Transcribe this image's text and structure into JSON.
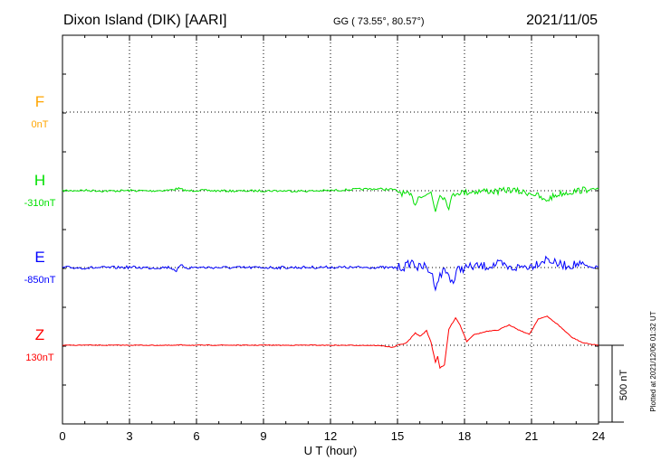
{
  "header": {
    "station": "Dixon Island (DIK)  [AARI]",
    "coords": "GG ( 73.55°,  80.57°)",
    "date": "2021/11/05"
  },
  "side_note": "Plotted at 2021/12/06 01:32 UT",
  "chart_data": {
    "type": "line",
    "xlabel": "U T (hour)",
    "xlim": [
      0,
      24
    ],
    "xticks": [
      0,
      3,
      6,
      9,
      12,
      15,
      18,
      21,
      24
    ],
    "scale_bar": {
      "label": "500 nT",
      "value_nT": 500
    },
    "colors": {
      "F": "#ffa500",
      "H": "#00e000",
      "E": "#0000ff",
      "Z": "#ff0000"
    },
    "series": [
      {
        "name": "F",
        "offset_label": "0nT",
        "baseline_nT": 0,
        "points": []
      },
      {
        "name": "H",
        "offset_label": "-310nT",
        "baseline_nT": -310,
        "points": [
          [
            0,
            -310
          ],
          [
            1,
            -308
          ],
          [
            2,
            -312
          ],
          [
            3,
            -309
          ],
          [
            4,
            -311
          ],
          [
            4.8,
            -306
          ],
          [
            5.2,
            -296
          ],
          [
            5.6,
            -312
          ],
          [
            6,
            -307
          ],
          [
            7,
            -311
          ],
          [
            8,
            -312
          ],
          [
            9,
            -310
          ],
          [
            10,
            -311
          ],
          [
            11,
            -312
          ],
          [
            12,
            -309
          ],
          [
            13,
            -302
          ],
          [
            14,
            -298
          ],
          [
            14.8,
            -302
          ],
          [
            15.2,
            -325
          ],
          [
            15.6,
            -345
          ],
          [
            15.8,
            -392
          ],
          [
            16.0,
            -335
          ],
          [
            16.3,
            -342
          ],
          [
            16.5,
            -318
          ],
          [
            16.7,
            -440
          ],
          [
            16.9,
            -325
          ],
          [
            17.1,
            -358
          ],
          [
            17.3,
            -412
          ],
          [
            17.5,
            -335
          ],
          [
            17.7,
            -318
          ],
          [
            18.0,
            -322
          ],
          [
            18.3,
            -315
          ],
          [
            19,
            -311
          ],
          [
            19.5,
            -316
          ],
          [
            20,
            -303
          ],
          [
            20.5,
            -318
          ],
          [
            21,
            -325
          ],
          [
            21.3,
            -345
          ],
          [
            21.6,
            -378
          ],
          [
            21.9,
            -352
          ],
          [
            22.3,
            -328
          ],
          [
            22.8,
            -317
          ],
          [
            23.3,
            -305
          ],
          [
            23.7,
            -302
          ],
          [
            24,
            -298
          ]
        ]
      },
      {
        "name": "E",
        "offset_label": "-850nT",
        "baseline_nT": -850,
        "points": [
          [
            0,
            -850
          ],
          [
            1,
            -852
          ],
          [
            2,
            -851
          ],
          [
            3,
            -848
          ],
          [
            4,
            -852
          ],
          [
            4.8,
            -848
          ],
          [
            5.1,
            -870
          ],
          [
            5.3,
            -838
          ],
          [
            5.6,
            -852
          ],
          [
            6,
            -849
          ],
          [
            7,
            -850
          ],
          [
            8,
            -851
          ],
          [
            9,
            -850
          ],
          [
            10,
            -850
          ],
          [
            11,
            -849
          ],
          [
            12,
            -848
          ],
          [
            13,
            -850
          ],
          [
            14,
            -848
          ],
          [
            14.7,
            -852
          ],
          [
            15.3,
            -846
          ],
          [
            15.7,
            -810
          ],
          [
            15.9,
            -852
          ],
          [
            16.2,
            -842
          ],
          [
            16.5,
            -880
          ],
          [
            16.7,
            -968
          ],
          [
            16.9,
            -905
          ],
          [
            17.1,
            -862
          ],
          [
            17.3,
            -900
          ],
          [
            17.5,
            -950
          ],
          [
            17.7,
            -862
          ],
          [
            18,
            -852
          ],
          [
            18.5,
            -843
          ],
          [
            19,
            -842
          ],
          [
            19.6,
            -826
          ],
          [
            20,
            -856
          ],
          [
            20.5,
            -846
          ],
          [
            21,
            -838
          ],
          [
            21.4,
            -812
          ],
          [
            21.7,
            -792
          ],
          [
            22.1,
            -826
          ],
          [
            22.6,
            -838
          ],
          [
            23.1,
            -828
          ],
          [
            23.6,
            -852
          ],
          [
            24,
            -845
          ]
        ]
      },
      {
        "name": "Z",
        "offset_label": "130nT",
        "baseline_nT": 130,
        "points": [
          [
            0,
            130
          ],
          [
            1,
            131
          ],
          [
            2,
            130
          ],
          [
            3,
            131
          ],
          [
            4,
            130
          ],
          [
            5,
            129
          ],
          [
            5.2,
            132
          ],
          [
            6,
            130
          ],
          [
            7,
            131
          ],
          [
            8,
            130
          ],
          [
            9,
            131
          ],
          [
            10,
            130
          ],
          [
            11,
            131
          ],
          [
            12,
            130
          ],
          [
            13,
            130
          ],
          [
            14,
            129
          ],
          [
            14.4,
            125
          ],
          [
            14.8,
            116
          ],
          [
            15.0,
            130
          ],
          [
            15.4,
            145
          ],
          [
            15.8,
            210
          ],
          [
            16.0,
            188
          ],
          [
            16.3,
            225
          ],
          [
            16.5,
            150
          ],
          [
            16.7,
            20
          ],
          [
            16.8,
            58
          ],
          [
            16.9,
            -17
          ],
          [
            17.1,
            0
          ],
          [
            17.3,
            235
          ],
          [
            17.6,
            310
          ],
          [
            17.8,
            262
          ],
          [
            18.1,
            155
          ],
          [
            18.4,
            198
          ],
          [
            19,
            220
          ],
          [
            19.5,
            228
          ],
          [
            20.0,
            264
          ],
          [
            20.4,
            232
          ],
          [
            20.9,
            200
          ],
          [
            21.3,
            302
          ],
          [
            21.7,
            318
          ],
          [
            22.2,
            262
          ],
          [
            22.8,
            182
          ],
          [
            23.3,
            146
          ],
          [
            23.7,
            136
          ],
          [
            24,
            130
          ]
        ]
      }
    ]
  }
}
